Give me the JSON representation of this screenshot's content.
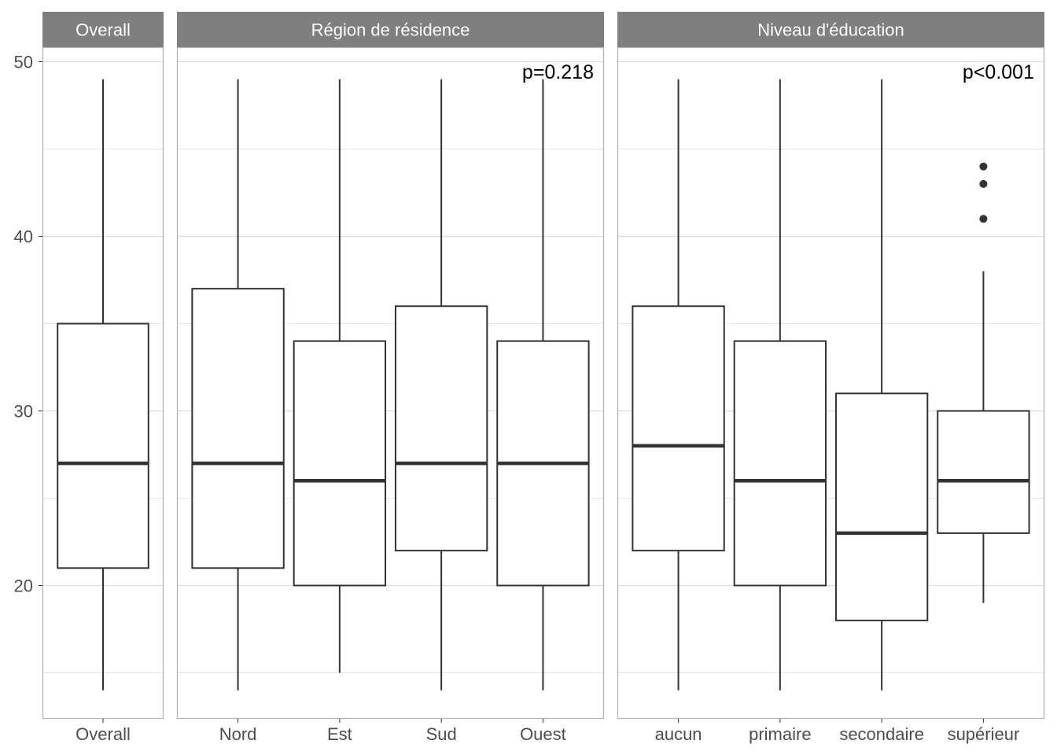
{
  "chart_data": {
    "type": "boxplot",
    "facet_layout": "columns, shared y axis",
    "grid": true,
    "ylim": [
      14,
      51
    ],
    "y_ticks": [
      20,
      30,
      40,
      50
    ],
    "colors": {
      "strip_background": "#7f7f7f",
      "strip_text": "#ffffff",
      "box_stroke": "#333333",
      "grid": "#dcdcdc",
      "panel_border": "#b3b3b3",
      "tick_text": "#4d4d4d"
    },
    "panels": [
      {
        "title": "Overall",
        "annotation": "",
        "boxes": [
          {
            "label": "Overall",
            "whisker_low": 14,
            "q1": 21,
            "median": 27,
            "q3": 35,
            "whisker_high": 49,
            "outliers": []
          }
        ]
      },
      {
        "title": "Région de résidence",
        "annotation": "p=0.218",
        "boxes": [
          {
            "label": "Nord",
            "whisker_low": 14,
            "q1": 21,
            "median": 27,
            "q3": 37,
            "whisker_high": 49,
            "outliers": []
          },
          {
            "label": "Est",
            "whisker_low": 15,
            "q1": 20,
            "median": 26,
            "q3": 34,
            "whisker_high": 49,
            "outliers": []
          },
          {
            "label": "Sud",
            "whisker_low": 14,
            "q1": 22,
            "median": 27,
            "q3": 36,
            "whisker_high": 49,
            "outliers": []
          },
          {
            "label": "Ouest",
            "whisker_low": 14,
            "q1": 20,
            "median": 27,
            "q3": 34,
            "whisker_high": 49,
            "outliers": []
          }
        ]
      },
      {
        "title": "Niveau d'éducation",
        "annotation": "p<0.001",
        "boxes": [
          {
            "label": "aucun",
            "whisker_low": 14,
            "q1": 22,
            "median": 28,
            "q3": 36,
            "whisker_high": 49,
            "outliers": []
          },
          {
            "label": "primaire",
            "whisker_low": 14,
            "q1": 20,
            "median": 26,
            "q3": 34,
            "whisker_high": 49,
            "outliers": []
          },
          {
            "label": "secondaire",
            "whisker_low": 14,
            "q1": 18,
            "median": 23,
            "q3": 31,
            "whisker_high": 49,
            "outliers": []
          },
          {
            "label": "supérieur",
            "whisker_low": 19,
            "q1": 23,
            "median": 26,
            "q3": 30,
            "whisker_high": 38,
            "outliers": [
              41,
              43,
              44
            ]
          }
        ]
      }
    ]
  }
}
